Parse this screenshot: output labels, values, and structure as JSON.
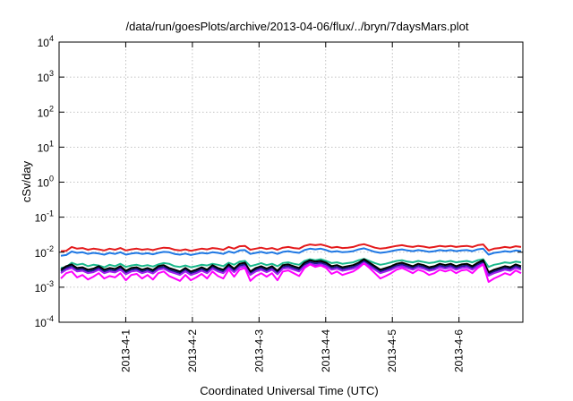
{
  "chart_data": {
    "type": "line",
    "title": "/data/run/goesPlots/archive/2013-04-06/flux/../bryn/7daysMars.plot",
    "xlabel": "Coordinated Universal Time (UTC)",
    "ylabel": "cSv/day",
    "yscale": "log",
    "ylim_exponent": [
      -4,
      4
    ],
    "y_ticks": [
      {
        "base": "10",
        "exp": "-4"
      },
      {
        "base": "10",
        "exp": "-3"
      },
      {
        "base": "10",
        "exp": "-2"
      },
      {
        "base": "10",
        "exp": "-1"
      },
      {
        "base": "10",
        "exp": "0"
      },
      {
        "base": "10",
        "exp": "1"
      },
      {
        "base": "10",
        "exp": "2"
      },
      {
        "base": "10",
        "exp": "3"
      },
      {
        "base": "10",
        "exp": "4"
      }
    ],
    "xlim": [
      "2013-03-31T00:00",
      "2013-04-06T23:00"
    ],
    "x_ticks": [
      "2013-4-1",
      "2013-4-2",
      "2013-4-3",
      "2013-4-4",
      "2013-4-5",
      "2013-4-6"
    ],
    "x_tick_dates": [
      "2013-04-01",
      "2013-04-02",
      "2013-04-03",
      "2013-04-04",
      "2013-04-05",
      "2013-04-06"
    ],
    "grid": true,
    "legend": "none",
    "series": [
      {
        "color": "#e41a1c",
        "log_values": [
          -1.97,
          -1.96,
          -1.85,
          -1.9,
          -1.88,
          -1.93,
          -1.9,
          -1.92,
          -1.95,
          -1.9,
          -1.93,
          -1.88,
          -1.95,
          -1.92,
          -1.9,
          -1.93,
          -1.91,
          -1.94,
          -1.9,
          -1.87,
          -1.88,
          -1.93,
          -1.95,
          -1.92,
          -1.96,
          -1.93,
          -1.9,
          -1.92,
          -1.88,
          -1.9,
          -1.93,
          -1.85,
          -1.9,
          -1.83,
          -1.82,
          -1.93,
          -1.9,
          -1.87,
          -1.91,
          -1.88,
          -1.93,
          -1.87,
          -1.85,
          -1.88,
          -1.9,
          -1.82,
          -1.78,
          -1.8,
          -1.78,
          -1.82,
          -1.87,
          -1.85,
          -1.88,
          -1.87,
          -1.85,
          -1.8,
          -1.77,
          -1.82,
          -1.87,
          -1.9,
          -1.88,
          -1.85,
          -1.82,
          -1.8,
          -1.83,
          -1.85,
          -1.82,
          -1.84,
          -1.87,
          -1.85,
          -1.82,
          -1.84,
          -1.82,
          -1.85,
          -1.83,
          -1.82,
          -1.85,
          -1.8,
          -1.78,
          -1.95,
          -1.9,
          -1.88,
          -1.85,
          -1.87,
          -1.83,
          -1.85
        ]
      },
      {
        "color": "#1f78e4",
        "log_values": [
          -2.1,
          -2.08,
          -1.98,
          -2.02,
          -2.0,
          -2.05,
          -2.02,
          -2.04,
          -2.07,
          -2.02,
          -2.05,
          -2.0,
          -2.07,
          -2.04,
          -2.02,
          -2.05,
          -2.03,
          -2.06,
          -2.02,
          -1.99,
          -2.0,
          -2.05,
          -2.07,
          -2.04,
          -2.08,
          -2.05,
          -2.02,
          -2.04,
          -2.0,
          -2.02,
          -2.05,
          -1.98,
          -2.02,
          -1.95,
          -1.94,
          -2.05,
          -2.02,
          -1.99,
          -2.03,
          -2.0,
          -2.05,
          -1.99,
          -1.97,
          -2.0,
          -2.02,
          -1.94,
          -1.9,
          -1.92,
          -1.9,
          -1.94,
          -1.99,
          -1.97,
          -2.0,
          -1.99,
          -1.97,
          -1.92,
          -1.89,
          -1.94,
          -1.99,
          -2.02,
          -2.0,
          -1.97,
          -1.94,
          -1.92,
          -1.95,
          -1.97,
          -1.94,
          -1.96,
          -1.99,
          -1.97,
          -1.94,
          -1.96,
          -1.94,
          -1.97,
          -1.95,
          -1.94,
          -1.97,
          -1.92,
          -1.9,
          -2.07,
          -2.02,
          -2.0,
          -1.97,
          -1.99,
          -1.95,
          -1.97
        ]
      },
      {
        "color": "#1bb98c",
        "log_values": [
          -2.45,
          -2.42,
          -2.3,
          -2.36,
          -2.33,
          -2.4,
          -2.36,
          -2.38,
          -2.43,
          -2.36,
          -2.4,
          -2.33,
          -2.42,
          -2.38,
          -2.36,
          -2.4,
          -2.37,
          -2.41,
          -2.35,
          -2.31,
          -2.33,
          -2.4,
          -2.42,
          -2.38,
          -2.43,
          -2.4,
          -2.36,
          -2.38,
          -2.33,
          -2.36,
          -2.4,
          -2.3,
          -2.36,
          -2.27,
          -2.25,
          -2.4,
          -2.36,
          -2.31,
          -2.37,
          -2.33,
          -2.4,
          -2.31,
          -2.29,
          -2.33,
          -2.36,
          -2.25,
          -2.2,
          -2.23,
          -2.2,
          -2.25,
          -2.31,
          -2.29,
          -2.33,
          -2.31,
          -2.29,
          -2.23,
          -2.19,
          -2.25,
          -2.31,
          -2.36,
          -2.33,
          -2.29,
          -2.25,
          -2.23,
          -2.27,
          -2.29,
          -2.25,
          -2.28,
          -2.31,
          -2.29,
          -2.25,
          -2.28,
          -2.25,
          -2.29,
          -2.27,
          -2.25,
          -2.29,
          -2.23,
          -2.2,
          -2.42,
          -2.36,
          -2.33,
          -2.29,
          -2.31,
          -2.27,
          -2.29
        ]
      },
      {
        "color": "#1c1c8c",
        "log_values": [
          -2.55,
          -2.45,
          -2.4,
          -2.5,
          -2.48,
          -2.55,
          -2.52,
          -2.45,
          -2.55,
          -2.5,
          -2.53,
          -2.45,
          -2.58,
          -2.5,
          -2.48,
          -2.55,
          -2.5,
          -2.56,
          -2.45,
          -2.42,
          -2.5,
          -2.55,
          -2.6,
          -2.5,
          -2.6,
          -2.55,
          -2.48,
          -2.55,
          -2.42,
          -2.5,
          -2.55,
          -2.4,
          -2.52,
          -2.38,
          -2.35,
          -2.6,
          -2.5,
          -2.45,
          -2.52,
          -2.45,
          -2.58,
          -2.42,
          -2.4,
          -2.45,
          -2.5,
          -2.35,
          -2.28,
          -2.32,
          -2.3,
          -2.35,
          -2.45,
          -2.42,
          -2.48,
          -2.45,
          -2.42,
          -2.35,
          -2.25,
          -2.35,
          -2.45,
          -2.55,
          -2.5,
          -2.45,
          -2.38,
          -2.35,
          -2.4,
          -2.45,
          -2.38,
          -2.42,
          -2.48,
          -2.45,
          -2.38,
          -2.42,
          -2.38,
          -2.45,
          -2.4,
          -2.38,
          -2.45,
          -2.35,
          -2.28,
          -2.62,
          -2.55,
          -2.5,
          -2.45,
          -2.48,
          -2.4,
          -2.45
        ]
      },
      {
        "color": "#000000",
        "log_values": [
          -2.5,
          -2.4,
          -2.35,
          -2.45,
          -2.43,
          -2.5,
          -2.47,
          -2.4,
          -2.5,
          -2.45,
          -2.48,
          -2.4,
          -2.53,
          -2.45,
          -2.43,
          -2.5,
          -2.45,
          -2.51,
          -2.4,
          -2.37,
          -2.45,
          -2.5,
          -2.55,
          -2.45,
          -2.55,
          -2.5,
          -2.43,
          -2.5,
          -2.37,
          -2.45,
          -2.5,
          -2.35,
          -2.47,
          -2.33,
          -2.3,
          -2.55,
          -2.45,
          -2.4,
          -2.47,
          -2.4,
          -2.53,
          -2.37,
          -2.35,
          -2.4,
          -2.45,
          -2.3,
          -2.23,
          -2.27,
          -2.25,
          -2.3,
          -2.4,
          -2.37,
          -2.43,
          -2.4,
          -2.37,
          -2.3,
          -2.2,
          -2.3,
          -2.4,
          -2.5,
          -2.45,
          -2.4,
          -2.33,
          -2.3,
          -2.35,
          -2.4,
          -2.33,
          -2.37,
          -2.43,
          -2.4,
          -2.33,
          -2.37,
          -2.33,
          -2.4,
          -2.35,
          -2.33,
          -2.4,
          -2.3,
          -2.23,
          -2.57,
          -2.5,
          -2.45,
          -2.4,
          -2.43,
          -2.35,
          -2.4
        ]
      },
      {
        "color": "#a020f0",
        "log_values": [
          -2.6,
          -2.5,
          -2.45,
          -2.55,
          -2.53,
          -2.6,
          -2.57,
          -2.5,
          -2.6,
          -2.55,
          -2.58,
          -2.5,
          -2.63,
          -2.55,
          -2.53,
          -2.6,
          -2.55,
          -2.61,
          -2.5,
          -2.47,
          -2.55,
          -2.6,
          -2.65,
          -2.55,
          -2.65,
          -2.6,
          -2.53,
          -2.6,
          -2.47,
          -2.55,
          -2.6,
          -2.45,
          -2.57,
          -2.43,
          -2.4,
          -2.65,
          -2.55,
          -2.5,
          -2.57,
          -2.5,
          -2.63,
          -2.47,
          -2.45,
          -2.5,
          -2.55,
          -2.4,
          -2.33,
          -2.37,
          -2.35,
          -2.4,
          -2.5,
          -2.47,
          -2.53,
          -2.5,
          -2.47,
          -2.4,
          -2.3,
          -2.4,
          -2.5,
          -2.6,
          -2.55,
          -2.5,
          -2.43,
          -2.4,
          -2.45,
          -2.5,
          -2.43,
          -2.47,
          -2.53,
          -2.5,
          -2.43,
          -2.47,
          -2.43,
          -2.5,
          -2.45,
          -2.43,
          -2.5,
          -2.4,
          -2.33,
          -2.67,
          -2.6,
          -2.55,
          -2.5,
          -2.53,
          -2.45,
          -2.5
        ]
      },
      {
        "color": "#ff00ff",
        "log_values": [
          -2.75,
          -2.6,
          -2.55,
          -2.72,
          -2.65,
          -2.78,
          -2.7,
          -2.6,
          -2.75,
          -2.68,
          -2.72,
          -2.6,
          -2.8,
          -2.65,
          -2.62,
          -2.75,
          -2.65,
          -2.78,
          -2.6,
          -2.55,
          -2.68,
          -2.75,
          -2.82,
          -2.65,
          -2.8,
          -2.72,
          -2.62,
          -2.75,
          -2.55,
          -2.68,
          -2.75,
          -2.5,
          -2.7,
          -2.5,
          -2.45,
          -2.82,
          -2.68,
          -2.6,
          -2.7,
          -2.6,
          -2.8,
          -2.55,
          -2.52,
          -2.6,
          -2.68,
          -2.45,
          -2.35,
          -2.42,
          -2.38,
          -2.45,
          -2.62,
          -2.55,
          -2.65,
          -2.6,
          -2.55,
          -2.45,
          -2.32,
          -2.45,
          -2.6,
          -2.75,
          -2.68,
          -2.6,
          -2.5,
          -2.45,
          -2.52,
          -2.6,
          -2.5,
          -2.55,
          -2.65,
          -2.6,
          -2.5,
          -2.55,
          -2.5,
          -2.6,
          -2.52,
          -2.5,
          -2.6,
          -2.45,
          -2.35,
          -2.85,
          -2.75,
          -2.68,
          -2.6,
          -2.65,
          -2.52,
          -2.6
        ]
      }
    ]
  }
}
